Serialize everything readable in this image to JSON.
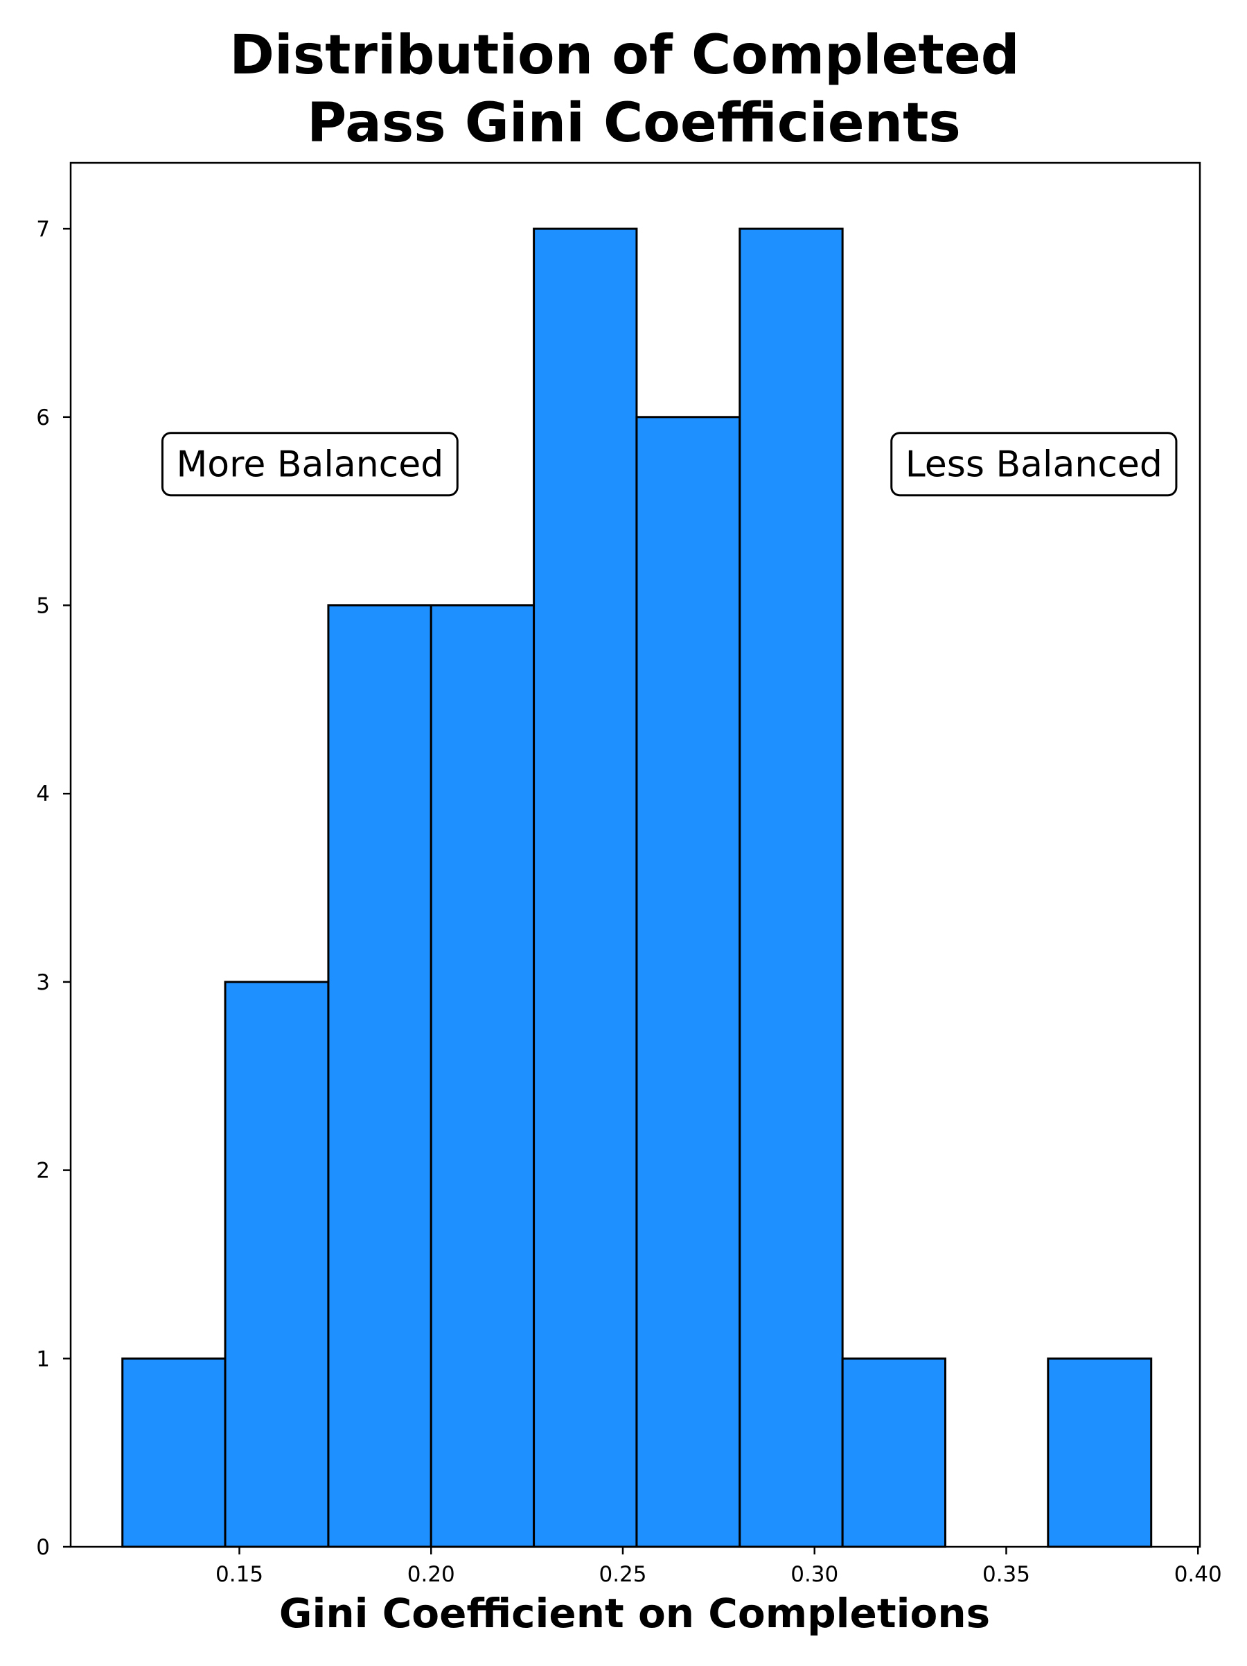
{
  "chart_data": {
    "type": "bar",
    "subtype": "histogram",
    "title": "Distribution of Completed\nPass Gini Coefficients",
    "title_lines": [
      "Distribution of Completed",
      "Pass Gini Coefficients"
    ],
    "xlabel": "Gini Coefficient on Completions",
    "ylabel": "",
    "bins": [
      {
        "start": 0.1195,
        "end": 0.1463,
        "count": 1
      },
      {
        "start": 0.1463,
        "end": 0.1732,
        "count": 3
      },
      {
        "start": 0.1732,
        "end": 0.2,
        "count": 5
      },
      {
        "start": 0.2,
        "end": 0.2268,
        "count": 5
      },
      {
        "start": 0.2268,
        "end": 0.2536,
        "count": 7
      },
      {
        "start": 0.2536,
        "end": 0.2805,
        "count": 6
      },
      {
        "start": 0.2805,
        "end": 0.3073,
        "count": 7
      },
      {
        "start": 0.3073,
        "end": 0.3341,
        "count": 1
      },
      {
        "start": 0.3341,
        "end": 0.3609,
        "count": 0
      },
      {
        "start": 0.3609,
        "end": 0.3878,
        "count": 1
      }
    ],
    "xlim": [
      0.106,
      0.4005
    ],
    "ylim": [
      0,
      7.35
    ],
    "xticks": [
      0.15,
      0.2,
      0.25,
      0.3,
      0.35,
      0.4
    ],
    "xtick_labels": [
      "0.15",
      "0.20",
      "0.25",
      "0.30",
      "0.35",
      "0.40"
    ],
    "yticks": [
      0,
      1,
      2,
      3,
      4,
      5,
      6,
      7
    ],
    "ytick_labels": [
      "0",
      "1",
      "2",
      "3",
      "4",
      "5",
      "6",
      "7"
    ],
    "grid": false,
    "legend": "none",
    "annotations": [
      {
        "text": "More Balanced",
        "x": 0.1684,
        "y": 5.75
      },
      {
        "text": "Less Balanced",
        "x": 0.3572,
        "y": 5.75
      }
    ],
    "colors": {
      "bar_fill": "#1e90ff",
      "bar_edge": "#000000",
      "axis": "#000000",
      "background": "#ffffff"
    }
  }
}
